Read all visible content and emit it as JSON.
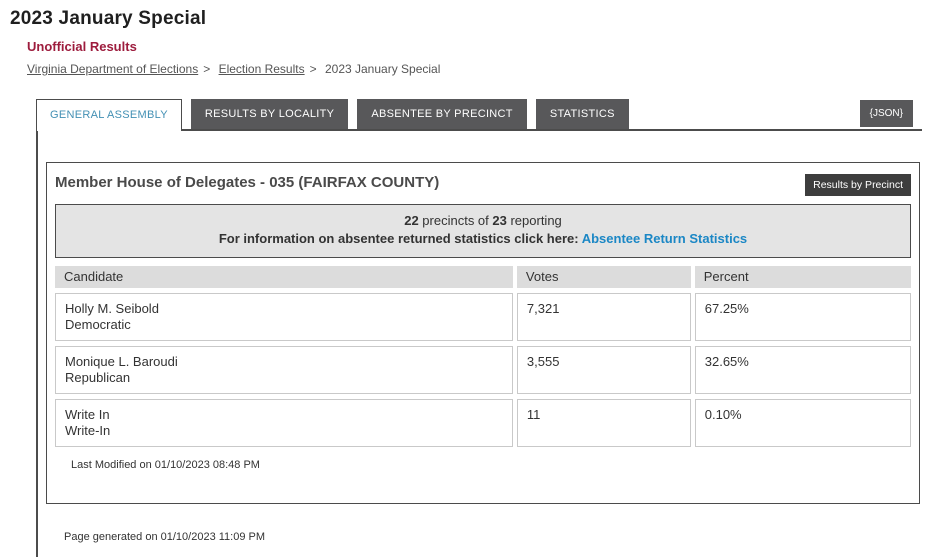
{
  "page": {
    "title": "2023 January Special",
    "subtitle": "Unofficial Results",
    "generated_note": "Page generated on 01/10/2023 11:09 PM"
  },
  "breadcrumb": {
    "separator": ">",
    "items": [
      {
        "label": "Virginia Department of Elections",
        "link": true
      },
      {
        "label": "Election Results",
        "link": true
      },
      {
        "label": "2023 January Special",
        "link": false
      }
    ]
  },
  "tabs": {
    "items": [
      {
        "label": "GENERAL ASSEMBLY",
        "active": true
      },
      {
        "label": "RESULTS BY LOCALITY",
        "active": false
      },
      {
        "label": "ABSENTEE BY PRECINCT",
        "active": false
      },
      {
        "label": "STATISTICS",
        "active": false
      }
    ],
    "json_button_label": "{JSON}"
  },
  "contest": {
    "title": "Member House of Delegates - 035 (FAIRFAX COUNTY)",
    "results_by_precinct_label": "Results by Precinct",
    "reporting": {
      "precincts_reporting": "22",
      "between_text": " precincts of ",
      "precincts_total": "23",
      "after_text": " reporting",
      "absentee_prefix": "For information on absentee returned statistics click here: ",
      "absentee_link_label": "Absentee Return Statistics"
    },
    "table": {
      "headers": [
        "Candidate",
        "Votes",
        "Percent"
      ],
      "rows": [
        {
          "candidate": "Holly M. Seibold",
          "party": "Democratic",
          "votes": "7,321",
          "percent": "67.25%"
        },
        {
          "candidate": "Monique L. Baroudi",
          "party": "Republican",
          "votes": "3,555",
          "percent": "32.65%"
        },
        {
          "candidate": "Write In",
          "party": "Write-In",
          "votes": "11",
          "percent": "0.10%"
        }
      ]
    },
    "last_modified": "Last Modified on 01/10/2023 08:48 PM"
  },
  "colors": {
    "maroon": "#9d1c3d",
    "link_blue": "#1b87c5",
    "tab_active_blue": "#4390b4",
    "tab_dark": "#58585a",
    "border_dark": "#4b4b4b",
    "box_gray": "#e4e4e4",
    "header_gray": "#dcdcdc"
  }
}
